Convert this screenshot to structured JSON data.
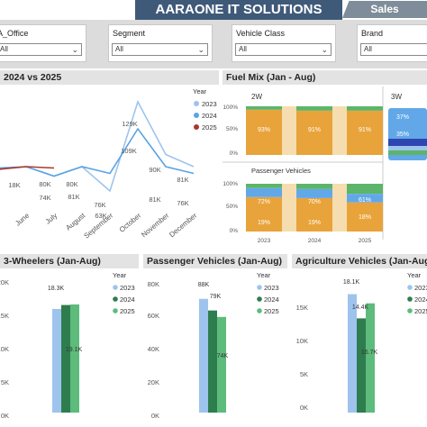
{
  "header": {
    "title": "AARAONE IT SOLUTIONS",
    "tab": "Sales"
  },
  "filters": [
    {
      "label": "A_Office",
      "value": "All"
    },
    {
      "label": "Segment",
      "value": "All"
    },
    {
      "label": "Vehicle Class",
      "value": "All"
    },
    {
      "label": "Brand",
      "value": "All"
    }
  ],
  "trend": {
    "title": "2024 vs 2025",
    "legend_title": "Year",
    "chart_data": {
      "type": "line",
      "categories": [
        "May",
        "June",
        "July",
        "August",
        "September",
        "October",
        "November",
        "December"
      ],
      "series": [
        {
          "name": "2023",
          "color": "#9ec4ee",
          "values": [
            null,
            81,
            74,
            81,
            63,
            129,
            90,
            81
          ]
        },
        {
          "name": "2024",
          "color": "#5aa3e4",
          "values": [
            80,
            81,
            74,
            81,
            76,
            109,
            81,
            76
          ]
        },
        {
          "name": "2025",
          "color": "#a8382c",
          "values": [
            79,
            81,
            80,
            null,
            null,
            null,
            null,
            null
          ]
        }
      ],
      "data_labels": [
        "18K",
        "80K",
        "74K",
        "80K",
        "81K",
        "76K",
        "63K",
        "129K",
        "109K",
        "90K",
        "81K",
        "81K",
        "76K"
      ]
    }
  },
  "fuel": {
    "title": "Fuel Mix (Jan - Aug)",
    "sub_2w": "2W",
    "sub_3w": "3W",
    "sub_pv": "Passenger Vehicles",
    "yticks": [
      "100%",
      "50%",
      "0%"
    ],
    "chart_data": {
      "type": "bar",
      "categories": [
        "2023",
        "2024",
        "2025"
      ],
      "2W": {
        "series": [
          {
            "name": "Petrol",
            "color": "#e8a33a",
            "values": [
              93,
              91,
              91
            ]
          },
          {
            "name": "EV",
            "color": "#5cb56a",
            "values": [
              7,
              9,
              9
            ]
          }
        ],
        "labels": [
          "93%",
          "91%",
          "91%"
        ]
      },
      "PV": {
        "series": [
          {
            "name": "Petrol",
            "color": "#e8a33a",
            "values": [
              72,
              70,
              61
            ]
          },
          {
            "name": "CNG",
            "color": "#62a8e8",
            "values": [
              19,
              19,
              18
            ]
          },
          {
            "name": "EV",
            "color": "#5cb56a",
            "values": [
              9,
              11,
              21
            ]
          }
        ],
        "labels": [
          "72%",
          "70%",
          "61%",
          "19%",
          "19%",
          "18%"
        ]
      },
      "3W": {
        "labels": [
          "37%",
          "35%"
        ]
      }
    }
  },
  "threew": {
    "title": "3-Wheelers (Jan-Aug)",
    "legend_title": "Year",
    "chart_data": {
      "type": "bar",
      "categories": [
        "2023",
        "2024",
        "2025"
      ],
      "values": [
        18.3,
        19,
        19.1
      ],
      "yticks": [
        "20K",
        "15K",
        "10K",
        "5K",
        "0K"
      ],
      "labels": [
        "18.3K",
        "19.1K"
      ]
    }
  },
  "pv": {
    "title": "Passenger Vehicles (Jan-Aug)",
    "legend_title": "Year",
    "chart_data": {
      "type": "bar",
      "categories": [
        "2023",
        "2024",
        "2025"
      ],
      "values": [
        88,
        79,
        74
      ],
      "yticks": [
        "80K",
        "60K",
        "40K",
        "20K",
        "0K"
      ],
      "labels": [
        "88K",
        "79K",
        "74K"
      ]
    }
  },
  "agri": {
    "title": "Agriculture Vehicles (Jan-Aug)",
    "legend_title": "Year",
    "chart_data": {
      "type": "bar",
      "categories": [
        "2023",
        "2024",
        "2025"
      ],
      "values": [
        18.1,
        14.4,
        16.7
      ],
      "yticks": [
        "15K",
        "10K",
        "5K",
        "0K"
      ],
      "labels": [
        "18.1K",
        "14.4K",
        "16.7K"
      ]
    }
  },
  "legend_years": [
    "2023",
    "2024",
    "2025"
  ],
  "colors": {
    "y2023": "#9ec4ee",
    "y2024": "#2e7d4e",
    "y2025": "#5dbb7c"
  }
}
